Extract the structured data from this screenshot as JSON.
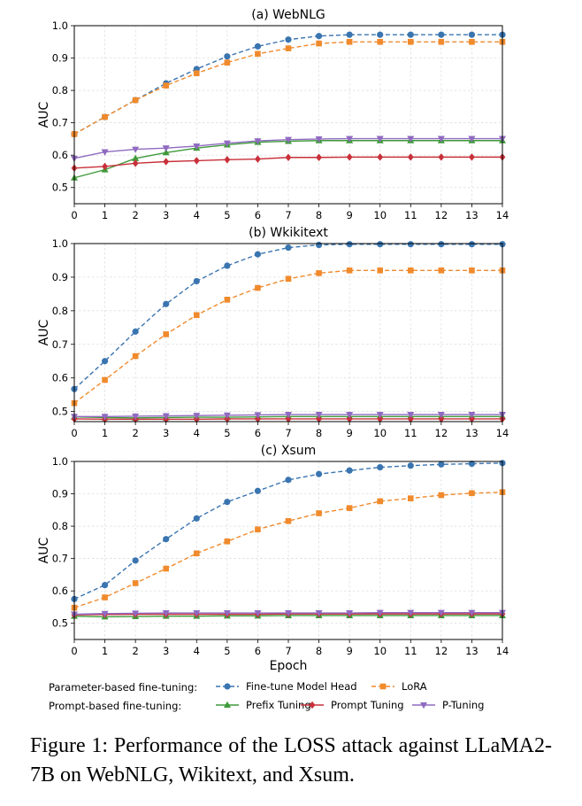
{
  "legend": {
    "group_parameter": "Parameter-based fine-tuning:",
    "group_prompt": "Prompt-based fine-tuning:"
  },
  "caption": "Figure 1:  Performance of the LOSS attack against LLaMA2-7B on WebNLG, Wikitext, and Xsum.",
  "series_styles": [
    {
      "name": "Fine-tune Model Head",
      "color": "#3a75b0",
      "marker": "circle",
      "dashed": true
    },
    {
      "name": "LoRA",
      "color": "#f08a2c",
      "marker": "square",
      "dashed": true
    },
    {
      "name": "Prefix Tuning",
      "color": "#3f9a3a",
      "marker": "triangle-up",
      "dashed": false
    },
    {
      "name": "Prompt Tuning",
      "color": "#c8303a",
      "marker": "diamond",
      "dashed": false
    },
    {
      "name": "P-Tuning",
      "color": "#8f6ac0",
      "marker": "triangle-down",
      "dashed": false
    }
  ],
  "chart_data": [
    {
      "type": "line",
      "title": "(a) WebNLG",
      "xlabel": "",
      "ylabel": "AUC",
      "x": [
        0,
        1,
        2,
        3,
        4,
        5,
        6,
        7,
        8,
        9,
        10,
        11,
        12,
        13,
        14
      ],
      "xlim": [
        0,
        14
      ],
      "ylim": [
        0.45,
        1.0
      ],
      "yticks": [
        0.5,
        0.6,
        0.7,
        0.8,
        0.9,
        1.0
      ],
      "grid": true,
      "series": [
        {
          "name": "Fine-tune Model Head",
          "values": [
            0.665,
            0.718,
            0.77,
            0.822,
            0.866,
            0.905,
            0.936,
            0.957,
            0.968,
            0.972,
            0.972,
            0.972,
            0.972,
            0.972,
            0.972
          ]
        },
        {
          "name": "LoRA",
          "values": [
            0.665,
            0.718,
            0.77,
            0.815,
            0.853,
            0.886,
            0.913,
            0.93,
            0.945,
            0.95,
            0.95,
            0.95,
            0.95,
            0.95,
            0.95
          ]
        },
        {
          "name": "Prefix Tuning",
          "values": [
            0.53,
            0.555,
            0.59,
            0.608,
            0.622,
            0.632,
            0.64,
            0.643,
            0.645,
            0.645,
            0.645,
            0.645,
            0.645,
            0.645,
            0.645
          ]
        },
        {
          "name": "Prompt Tuning",
          "values": [
            0.56,
            0.565,
            0.575,
            0.58,
            0.583,
            0.586,
            0.588,
            0.593,
            0.593,
            0.594,
            0.594,
            0.594,
            0.594,
            0.594,
            0.594
          ]
        },
        {
          "name": "P-Tuning",
          "values": [
            0.59,
            0.61,
            0.618,
            0.622,
            0.628,
            0.637,
            0.644,
            0.648,
            0.65,
            0.651,
            0.651,
            0.651,
            0.651,
            0.651,
            0.651
          ]
        }
      ]
    },
    {
      "type": "line",
      "title": "(b) Wkikitext",
      "xlabel": "",
      "ylabel": "AUC",
      "x": [
        0,
        1,
        2,
        3,
        4,
        5,
        6,
        7,
        8,
        9,
        10,
        11,
        12,
        13,
        14
      ],
      "xlim": [
        0,
        14
      ],
      "ylim": [
        0.47,
        1.0
      ],
      "yticks": [
        0.5,
        0.6,
        0.7,
        0.8,
        0.9,
        1.0
      ],
      "grid": true,
      "series": [
        {
          "name": "Fine-tune Model Head",
          "values": [
            0.567,
            0.65,
            0.738,
            0.82,
            0.888,
            0.934,
            0.968,
            0.988,
            0.996,
            0.998,
            0.998,
            0.998,
            0.998,
            0.998,
            0.998
          ]
        },
        {
          "name": "LoRA",
          "values": [
            0.525,
            0.594,
            0.665,
            0.73,
            0.787,
            0.833,
            0.868,
            0.895,
            0.912,
            0.92,
            0.92,
            0.92,
            0.92,
            0.92,
            0.92
          ]
        },
        {
          "name": "Prefix Tuning",
          "values": [
            0.484,
            0.482,
            0.481,
            0.482,
            0.483,
            0.483,
            0.484,
            0.485,
            0.485,
            0.485,
            0.485,
            0.485,
            0.485,
            0.485,
            0.485
          ]
        },
        {
          "name": "Prompt Tuning",
          "values": [
            0.478,
            0.477,
            0.477,
            0.477,
            0.477,
            0.478,
            0.478,
            0.478,
            0.478,
            0.478,
            0.478,
            0.478,
            0.478,
            0.478,
            0.478
          ]
        },
        {
          "name": "P-Tuning",
          "values": [
            0.485,
            0.485,
            0.486,
            0.487,
            0.488,
            0.489,
            0.49,
            0.491,
            0.491,
            0.491,
            0.491,
            0.491,
            0.491,
            0.491,
            0.491
          ]
        }
      ]
    },
    {
      "type": "line",
      "title": "(c) Xsum",
      "xlabel": "Epoch",
      "ylabel": "AUC",
      "x": [
        0,
        1,
        2,
        3,
        4,
        5,
        6,
        7,
        8,
        9,
        10,
        11,
        12,
        13,
        14
      ],
      "xlim": [
        0,
        14
      ],
      "ylim": [
        0.45,
        1.0
      ],
      "yticks": [
        0.5,
        0.6,
        0.7,
        0.8,
        0.9,
        1.0
      ],
      "grid": true,
      "series": [
        {
          "name": "Fine-tune Model Head",
          "values": [
            0.575,
            0.618,
            0.694,
            0.76,
            0.824,
            0.875,
            0.909,
            0.943,
            0.961,
            0.972,
            0.982,
            0.987,
            0.991,
            0.993,
            0.995
          ]
        },
        {
          "name": "LoRA",
          "values": [
            0.548,
            0.58,
            0.624,
            0.669,
            0.716,
            0.753,
            0.79,
            0.816,
            0.84,
            0.856,
            0.877,
            0.886,
            0.896,
            0.902,
            0.905
          ]
        },
        {
          "name": "Prefix Tuning",
          "values": [
            0.522,
            0.52,
            0.521,
            0.522,
            0.522,
            0.523,
            0.523,
            0.524,
            0.524,
            0.524,
            0.524,
            0.524,
            0.524,
            0.524,
            0.524
          ]
        },
        {
          "name": "Prompt Tuning",
          "values": [
            0.526,
            0.527,
            0.528,
            0.528,
            0.528,
            0.528,
            0.528,
            0.529,
            0.529,
            0.529,
            0.529,
            0.529,
            0.529,
            0.529,
            0.529
          ]
        },
        {
          "name": "P-Tuning",
          "values": [
            0.528,
            0.53,
            0.531,
            0.532,
            0.532,
            0.532,
            0.532,
            0.532,
            0.532,
            0.532,
            0.533,
            0.533,
            0.533,
            0.533,
            0.533
          ]
        }
      ]
    }
  ]
}
